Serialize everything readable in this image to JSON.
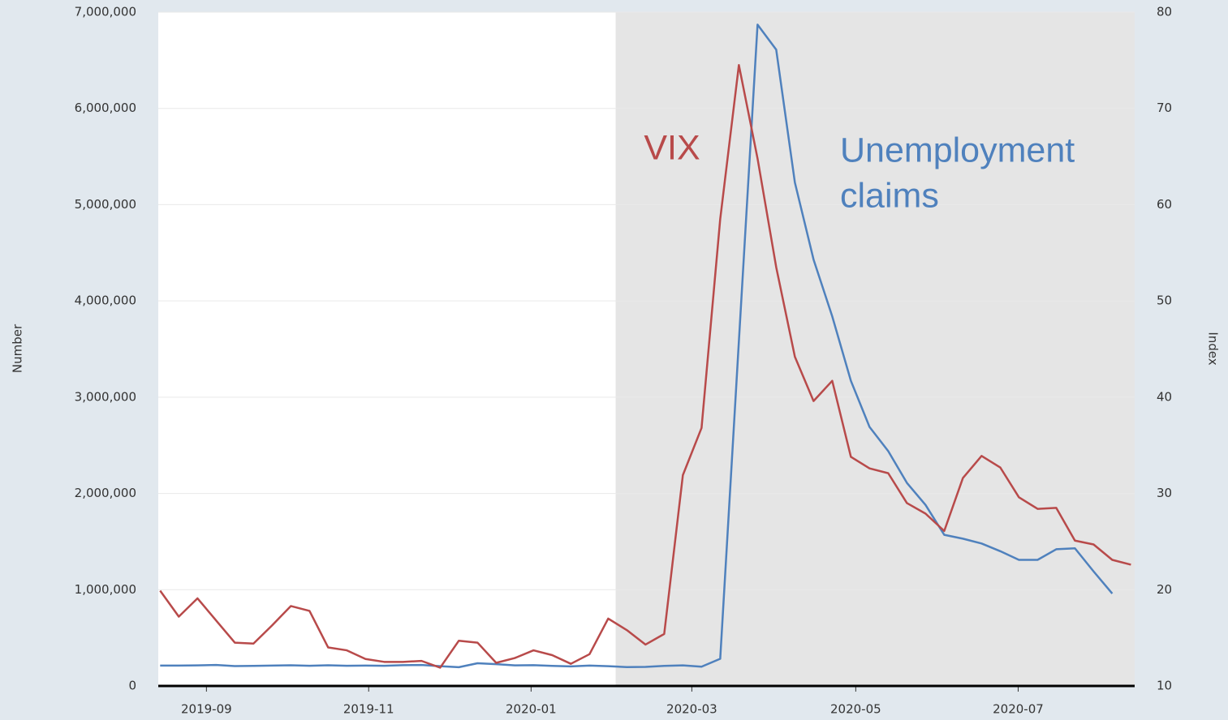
{
  "chart_data": {
    "type": "line",
    "y_label": "Number",
    "y2_label": "Index",
    "annotations": [
      {
        "lines": [
          "VIX"
        ],
        "series": 1
      },
      {
        "lines": [
          "Unemployment",
          "claims"
        ],
        "series": 0
      }
    ],
    "categories": [
      null,
      null,
      null,
      null,
      null,
      null,
      null,
      null,
      null,
      null,
      null,
      null,
      null,
      null,
      null,
      null,
      null,
      null,
      null,
      null,
      null,
      null,
      null,
      null,
      null,
      null,
      null,
      null,
      null,
      null,
      null,
      null,
      null,
      null,
      null,
      null,
      null,
      null,
      null,
      null,
      null,
      null,
      null,
      null,
      null,
      null,
      null,
      null,
      null,
      null,
      null,
      null,
      null
    ],
    "xlim": [
      -0.1,
      52.2
    ],
    "xticks": [
      {
        "value": 2.48,
        "label": "2019-09"
      },
      {
        "value": 11.17,
        "label": "2019-11"
      },
      {
        "value": 19.87,
        "label": "2020-01"
      },
      {
        "value": 28.48,
        "label": "2020-03"
      },
      {
        "value": 37.26,
        "label": "2020-05"
      },
      {
        "value": 45.96,
        "label": "2020-07"
      }
    ],
    "shaded_region": [
      24.4,
      52.2
    ],
    "ylim": [
      0,
      7000000
    ],
    "yticks": [
      0,
      {
        "value": 1000000,
        "label": "1,000,000"
      },
      {
        "value": 2000000,
        "label": "2,000,000"
      },
      {
        "value": 3000000,
        "label": "3,000,000"
      },
      {
        "value": 4000000,
        "label": "4,000,000"
      },
      {
        "value": 5000000,
        "label": "5,000,000"
      },
      {
        "value": 6000000,
        "label": "6,000,000"
      },
      {
        "value": 7000000,
        "label": "7,000,000"
      }
    ],
    "y2lim": [
      10,
      80
    ],
    "y2ticks": [
      10,
      20,
      30,
      40,
      50,
      60,
      70,
      80
    ],
    "grid": true,
    "series": [
      {
        "name": "Unemployment claims",
        "color": "#4f81bd",
        "axis": "y",
        "values": [
          212000,
          212000,
          214000,
          218000,
          206000,
          208000,
          212000,
          215000,
          210000,
          215000,
          210000,
          212000,
          210000,
          216000,
          218000,
          205000,
          195000,
          236000,
          226000,
          214000,
          216000,
          208000,
          203000,
          212000,
          205000,
          196000,
          198000,
          208000,
          214000,
          200000,
          282000,
          3580000,
          6870000,
          6610000,
          5230000,
          4430000,
          3840000,
          3170000,
          2690000,
          2440000,
          2110000,
          1880000,
          1570000,
          1530000,
          1480000,
          1400000,
          1310000,
          1310000,
          1420000,
          1430000,
          1190000,
          960000,
          null
        ]
      },
      {
        "name": "VIX",
        "color": "#b84a4a",
        "axis": "y2",
        "values": [
          19.9,
          17.2,
          19.1,
          16.8,
          14.5,
          14.4,
          16.3,
          18.3,
          17.8,
          14.0,
          13.7,
          12.8,
          12.5,
          12.5,
          12.6,
          11.9,
          14.7,
          14.5,
          12.4,
          12.9,
          13.7,
          13.2,
          12.3,
          13.3,
          17.0,
          15.8,
          14.3,
          15.4,
          31.9,
          36.8,
          58.5,
          74.5,
          64.8,
          53.5,
          44.2,
          39.6,
          41.7,
          33.8,
          32.6,
          32.1,
          29.0,
          27.9,
          26.1,
          31.6,
          33.9,
          32.7,
          29.6,
          28.4,
          28.5,
          25.1,
          24.7,
          23.1,
          22.6
        ]
      }
    ]
  }
}
